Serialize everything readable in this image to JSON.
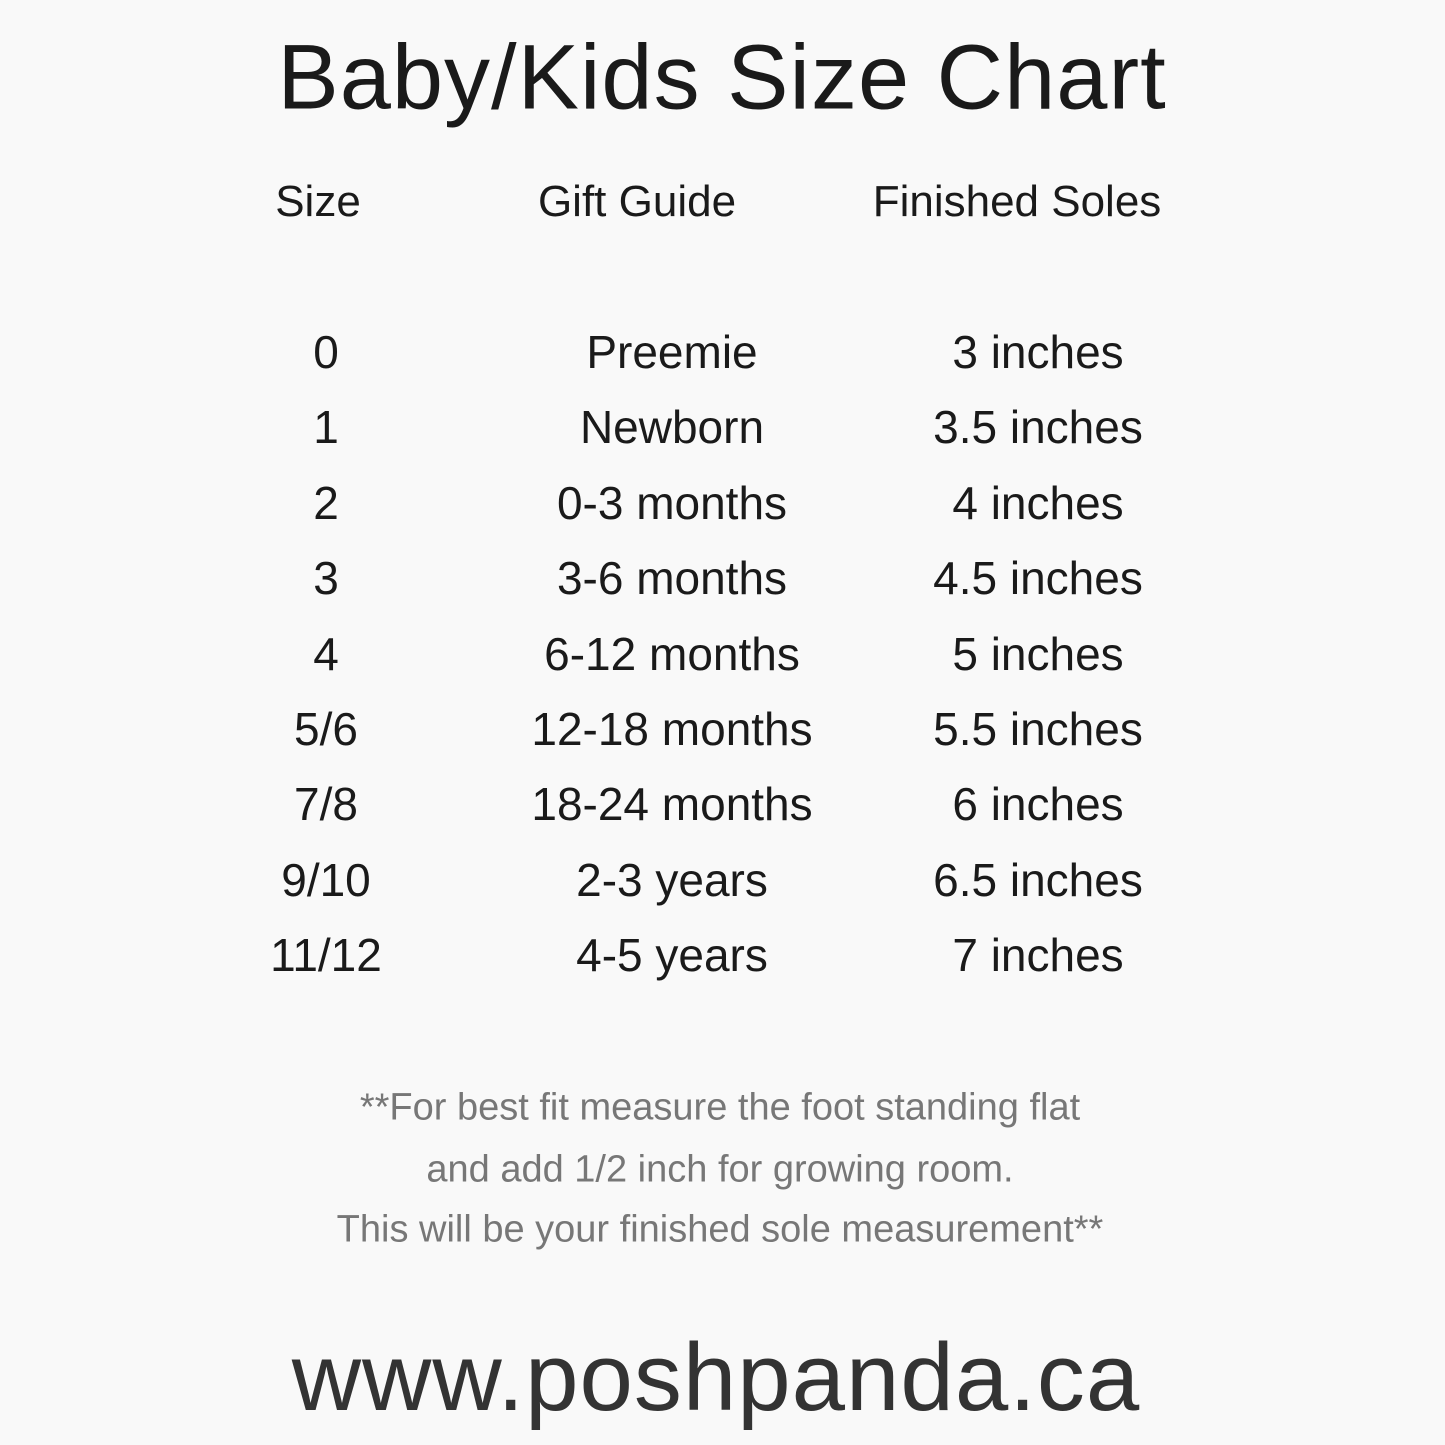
{
  "title": "Baby/Kids Size Chart",
  "headers": [
    "Size",
    "Gift Guide",
    "Finished Soles"
  ],
  "rows": [
    {
      "size": "0",
      "gift": "Preemie",
      "sole": "3 inches"
    },
    {
      "size": "1",
      "gift": "Newborn",
      "sole": "3.5 inches"
    },
    {
      "size": "2",
      "gift": "0-3 months",
      "sole": "4 inches"
    },
    {
      "size": "3",
      "gift": "3-6 months",
      "sole": "4.5 inches"
    },
    {
      "size": "4",
      "gift": "6-12 months",
      "sole": "5 inches"
    },
    {
      "size": "5/6",
      "gift": "12-18 months",
      "sole": "5.5 inches"
    },
    {
      "size": "7/8",
      "gift": "18-24 months",
      "sole": "6 inches"
    },
    {
      "size": "9/10",
      "gift": "2-3 years",
      "sole": "6.5 inches"
    },
    {
      "size": "11/12",
      "gift": "4-5 years",
      "sole": "7 inches"
    }
  ],
  "note": [
    "**For best fit measure the foot standing flat",
    "and add 1/2 inch for growing room.",
    "This will be your finished sole measurement**"
  ],
  "website": "www.poshpanda.ca"
}
